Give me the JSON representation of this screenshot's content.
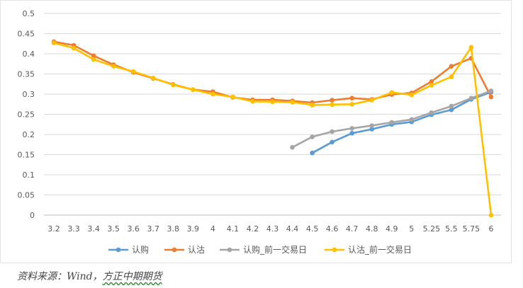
{
  "chart_data": {
    "type": "line",
    "title": "",
    "xlabel": "",
    "ylabel": "",
    "categories": [
      "3.2",
      "3.3",
      "3.4",
      "3.5",
      "3.6",
      "3.7",
      "3.8",
      "3.9",
      "4",
      "4.1",
      "4.2",
      "4.3",
      "4.4",
      "4.5",
      "4.6",
      "4.7",
      "4.8",
      "4.9",
      "5",
      "5.25",
      "5.5",
      "5.75",
      "6"
    ],
    "ylim": [
      0,
      0.5
    ],
    "yticks": [
      "0",
      "0.05",
      "0.1",
      "0.15",
      "0.2",
      "0.25",
      "0.3",
      "0.35",
      "0.4",
      "0.45",
      "0.5"
    ],
    "grid": "horizontal",
    "legend_position": "bottom",
    "series": [
      {
        "name": "认购",
        "color": "#5B9BD5",
        "values": [
          null,
          null,
          null,
          null,
          null,
          null,
          null,
          null,
          null,
          null,
          null,
          null,
          null,
          0.154,
          0.181,
          0.203,
          0.213,
          0.225,
          0.231,
          0.249,
          0.261,
          0.287,
          0.305
        ]
      },
      {
        "name": "认沽",
        "color": "#ED7D31",
        "values": [
          0.43,
          0.421,
          0.395,
          0.373,
          0.354,
          0.339,
          0.324,
          0.311,
          0.306,
          0.292,
          0.286,
          0.286,
          0.283,
          0.279,
          0.285,
          0.29,
          0.287,
          0.299,
          0.303,
          0.331,
          0.369,
          0.389,
          0.293
        ]
      },
      {
        "name": "认购_前一交易日",
        "color": "#A5A5A5",
        "values": [
          null,
          null,
          null,
          null,
          null,
          null,
          null,
          null,
          null,
          null,
          null,
          null,
          0.168,
          0.194,
          0.207,
          0.215,
          0.222,
          0.23,
          0.237,
          0.254,
          0.27,
          0.29,
          0.308
        ]
      },
      {
        "name": "认沽_前一交易日",
        "color": "#FFC000",
        "values": [
          0.427,
          0.414,
          0.386,
          0.369,
          0.356,
          0.34,
          0.323,
          0.311,
          0.3,
          0.293,
          0.282,
          0.281,
          0.28,
          0.273,
          0.274,
          0.275,
          0.285,
          0.304,
          0.298,
          0.322,
          0.343,
          0.416,
          0.0
        ]
      }
    ]
  },
  "source_note": {
    "prefix": "资料来源：Wind，",
    "underlined": "方正中期期货"
  }
}
